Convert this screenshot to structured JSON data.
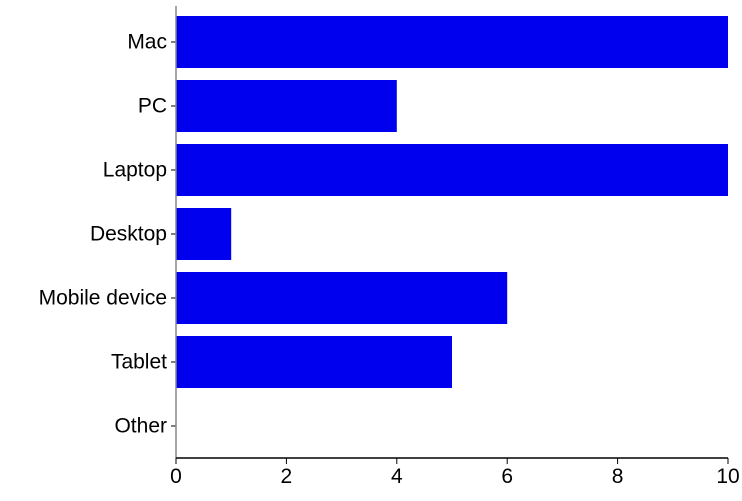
{
  "chart_data": {
    "type": "bar",
    "orientation": "horizontal",
    "categories": [
      "Mac",
      "PC",
      "Laptop",
      "Desktop",
      "Mobile device",
      "Tablet",
      "Other"
    ],
    "values": [
      10,
      4,
      10,
      1,
      6,
      5,
      0
    ],
    "x_ticks": [
      "0",
      "2",
      "4",
      "6",
      "8",
      "10"
    ],
    "xlim": [
      0,
      10
    ],
    "title": "",
    "xlabel": "",
    "ylabel": "",
    "grid": false,
    "legend": "none",
    "bar_color": "#0000ee",
    "axis_color": "#000000"
  }
}
